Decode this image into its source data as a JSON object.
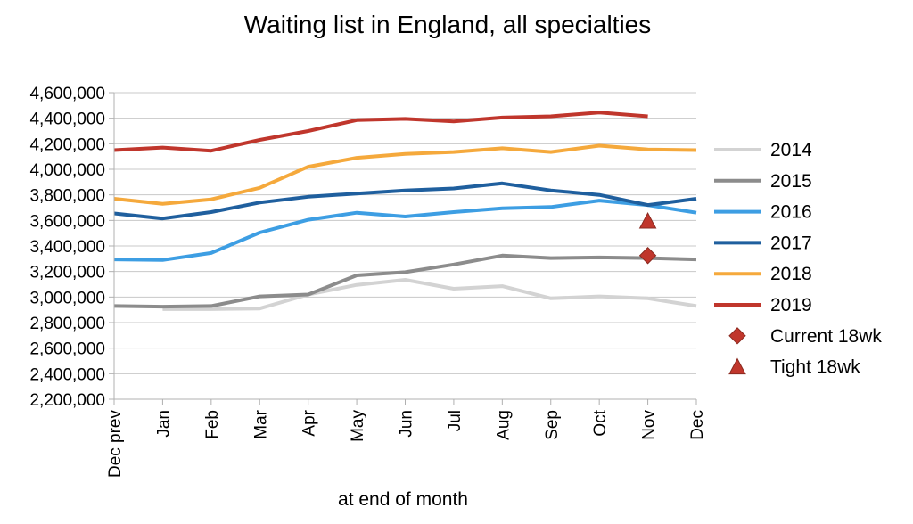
{
  "chart_data": {
    "type": "line",
    "title": "Waiting list in England, all specialties",
    "xlabel": "at end of month",
    "ylabel": "",
    "categories": [
      "Dec prev",
      "Jan",
      "Feb",
      "Mar",
      "Apr",
      "May",
      "Jun",
      "Jul",
      "Aug",
      "Sep",
      "Oct",
      "Nov",
      "Dec"
    ],
    "ylim": [
      2200000,
      4600000
    ],
    "yticks": [
      "2,200,000",
      "2,400,000",
      "2,600,000",
      "2,800,000",
      "3,000,000",
      "3,200,000",
      "3,400,000",
      "3,600,000",
      "3,800,000",
      "4,000,000",
      "4,200,000",
      "4,400,000",
      "4,600,000"
    ],
    "grid": true,
    "legend_position": "right",
    "series": [
      {
        "name": "2014",
        "color": "#d3d3d3",
        "values": [
          null,
          2905000,
          2905000,
          2910000,
          3020000,
          3095000,
          3135000,
          3065000,
          3085000,
          2990000,
          3005000,
          2990000,
          2930000
        ]
      },
      {
        "name": "2015",
        "color": "#8c8c8c",
        "values": [
          2930000,
          2925000,
          2930000,
          3005000,
          3020000,
          3170000,
          3195000,
          3255000,
          3325000,
          3305000,
          3310000,
          3305000,
          3295000
        ]
      },
      {
        "name": "2016",
        "color": "#3d9ee3",
        "values": [
          3295000,
          3290000,
          3345000,
          3505000,
          3605000,
          3660000,
          3630000,
          3665000,
          3695000,
          3705000,
          3755000,
          3720000,
          3660000
        ]
      },
      {
        "name": "2017",
        "color": "#1f5f9e",
        "values": [
          3655000,
          3615000,
          3665000,
          3740000,
          3785000,
          3810000,
          3835000,
          3850000,
          3890000,
          3835000,
          3800000,
          3720000,
          3770000
        ]
      },
      {
        "name": "2018",
        "color": "#f5a93c",
        "values": [
          3770000,
          3730000,
          3765000,
          3855000,
          4020000,
          4090000,
          4120000,
          4135000,
          4165000,
          4135000,
          4185000,
          4155000,
          4150000
        ]
      },
      {
        "name": "2019",
        "color": "#c0362c",
        "values": [
          4150000,
          4170000,
          4145000,
          4230000,
          4300000,
          4385000,
          4395000,
          4375000,
          4405000,
          4415000,
          4445000,
          4415000,
          null
        ]
      }
    ],
    "markers": [
      {
        "name": "Current 18wk",
        "shape": "diamond",
        "color": "#c0362c",
        "x": "Nov",
        "y": 3325000
      },
      {
        "name": "Tight 18wk",
        "shape": "triangle",
        "color": "#c0362c",
        "x": "Nov",
        "y": 3595000
      }
    ]
  }
}
